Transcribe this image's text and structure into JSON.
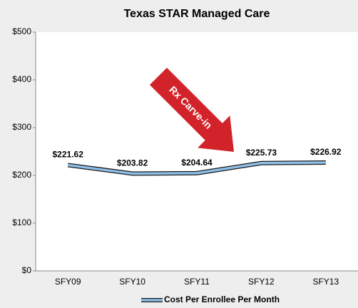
{
  "chart_data": {
    "type": "line",
    "title": "Texas STAR Managed Care",
    "categories": [
      "SFY09",
      "SFY10",
      "SFY11",
      "SFY12",
      "SFY13"
    ],
    "series": [
      {
        "name": "Cost Per Enrollee Per Month",
        "color": "#8fbfe6",
        "values": [
          221.62,
          203.82,
          204.64,
          225.73,
          226.92
        ],
        "value_labels": [
          "$221.62",
          "$203.82",
          "$204.64",
          "$225.73",
          "$226.92"
        ]
      }
    ],
    "ylim": [
      0,
      500
    ],
    "yticks": [
      {
        "value": 0,
        "label": "$0"
      },
      {
        "value": 100,
        "label": "$100"
      },
      {
        "value": 200,
        "label": "$200"
      },
      {
        "value": 300,
        "label": "$300"
      },
      {
        "value": 400,
        "label": "$400"
      },
      {
        "value": 500,
        "label": "$500"
      }
    ],
    "grid": false,
    "legend": "bottom",
    "annotation": "Rx Carve-in"
  }
}
